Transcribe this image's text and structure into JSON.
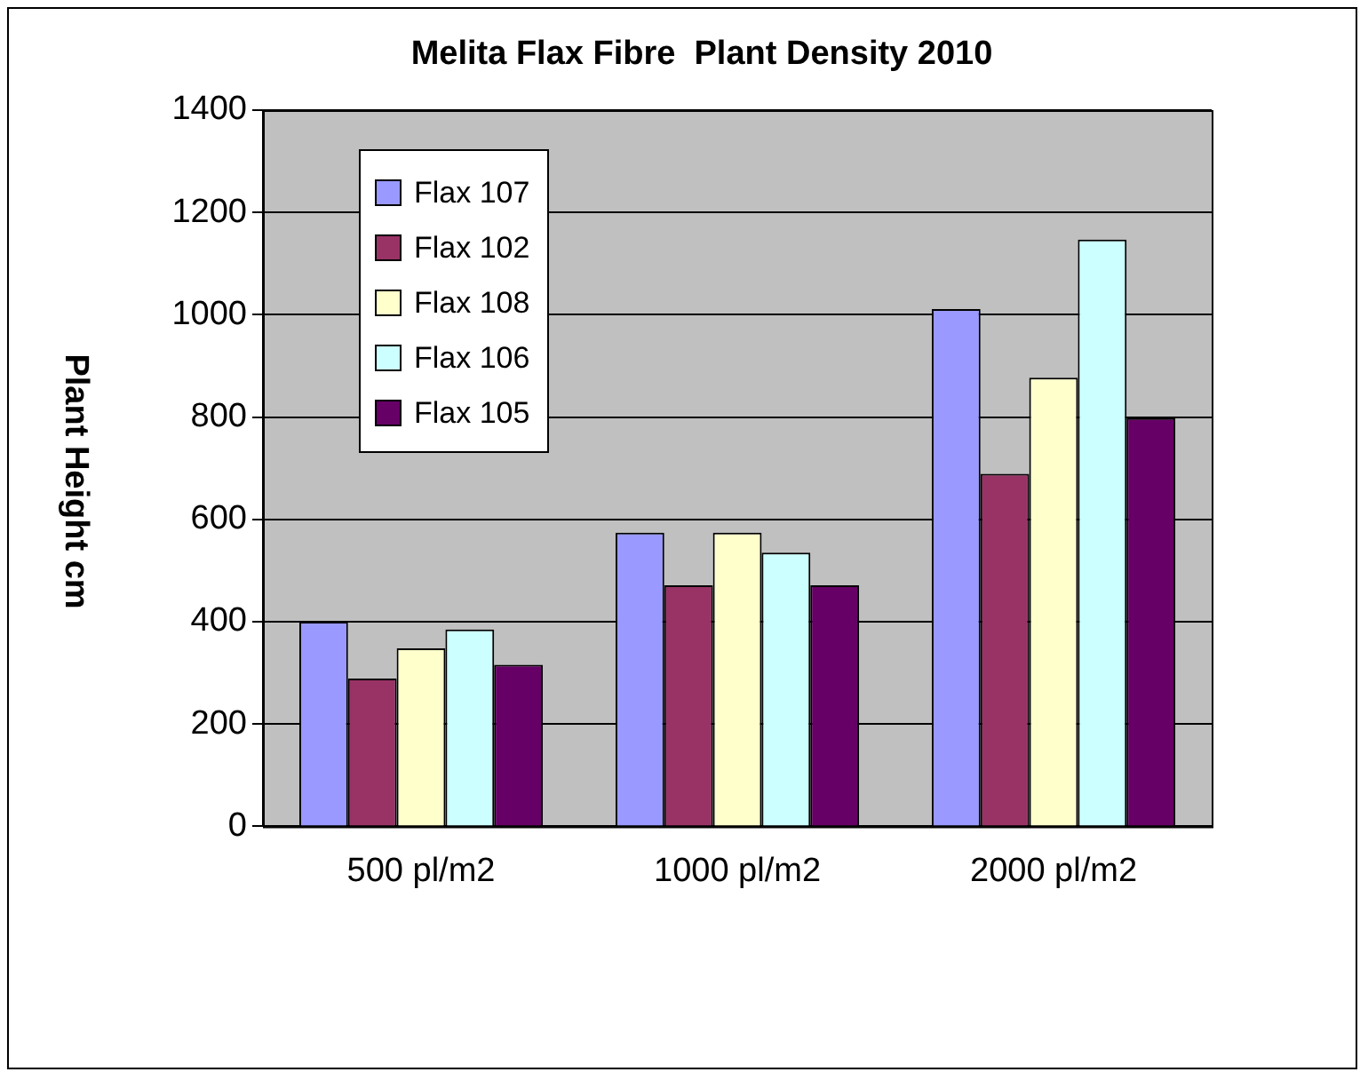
{
  "chart_data": {
    "type": "bar",
    "title": "Melita Flax Fibre  Plant Density 2010",
    "ylabel": "Plant Height cm",
    "categories": [
      "500 pl/m2",
      "1000 pl/m2",
      "2000 pl/m2"
    ],
    "series": [
      {
        "name": "Flax 107",
        "color": "#9999ff",
        "values": [
          400,
          574,
          1011
        ]
      },
      {
        "name": "Flax 102",
        "color": "#993366",
        "values": [
          289,
          471,
          689
        ]
      },
      {
        "name": "Flax 108",
        "color": "#ffffcc",
        "values": [
          348,
          574,
          877
        ]
      },
      {
        "name": "Flax 106",
        "color": "#ccffff",
        "values": [
          385,
          535,
          1147
        ]
      },
      {
        "name": "Flax 105",
        "color": "#660066",
        "values": [
          316,
          471,
          798
        ]
      }
    ],
    "ylim": [
      0,
      1400
    ],
    "yticks": [
      0,
      200,
      400,
      600,
      800,
      1000,
      1200,
      1400
    ],
    "grid": "y",
    "legend": "top left"
  }
}
